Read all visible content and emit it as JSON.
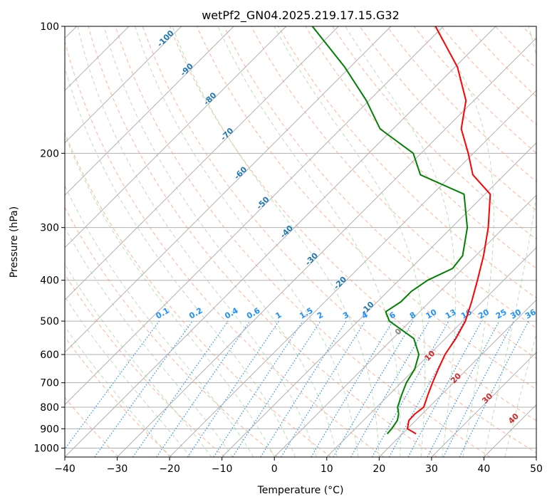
{
  "chart_data": {
    "type": "line",
    "title": "wetPf2_GN04.2025.219.17.15.G32",
    "xlabel": "Temperature (°C)",
    "ylabel": "Pressure (hPa)",
    "xlim": [
      -40,
      50
    ],
    "ylim": [
      1050,
      100
    ],
    "y_scale": "log",
    "x_ticks": [
      -40,
      -30,
      -20,
      -10,
      0,
      10,
      20,
      30,
      40,
      50
    ],
    "y_ticks": [
      100,
      200,
      300,
      400,
      500,
      600,
      700,
      800,
      900,
      1000
    ],
    "grid": true,
    "skew": 45,
    "series": [
      {
        "color": "#ff0000",
        "points": [
          [
            22.6,
            925
          ],
          [
            20.0,
            900
          ],
          [
            18.7,
            860
          ],
          [
            18.6,
            830
          ],
          [
            19.0,
            800
          ],
          [
            17.5,
            750
          ],
          [
            16.0,
            700
          ],
          [
            14.5,
            650
          ],
          [
            13.0,
            600
          ],
          [
            12.0,
            550
          ],
          [
            10.5,
            500
          ],
          [
            8.0,
            450
          ],
          [
            5.0,
            400
          ],
          [
            1.5,
            350
          ],
          [
            -3.0,
            300
          ],
          [
            -9.0,
            250
          ],
          [
            -16.0,
            225
          ],
          [
            -21.0,
            200
          ],
          [
            -27.0,
            175
          ],
          [
            -31.5,
            150
          ],
          [
            -39.5,
            125
          ],
          [
            -51.5,
            100
          ]
        ]
      },
      {
        "color": "#008000",
        "points": [
          [
            17.1,
            925
          ],
          [
            17.0,
            900
          ],
          [
            16.5,
            860
          ],
          [
            15.5,
            830
          ],
          [
            14.0,
            800
          ],
          [
            12.5,
            750
          ],
          [
            11.0,
            700
          ],
          [
            10.0,
            650
          ],
          [
            8.0,
            600
          ],
          [
            4.0,
            550
          ],
          [
            -4.0,
            500
          ],
          [
            -6.5,
            475
          ],
          [
            -5.5,
            450
          ],
          [
            -5.5,
            425
          ],
          [
            -4.5,
            400
          ],
          [
            -2.0,
            375
          ],
          [
            -2.5,
            350
          ],
          [
            -7.0,
            300
          ],
          [
            -14.0,
            250
          ],
          [
            -26.0,
            225
          ],
          [
            -31.5,
            200
          ],
          [
            -42.5,
            175
          ],
          [
            -50.5,
            150
          ],
          [
            -61.0,
            125
          ],
          [
            -75.0,
            100
          ]
        ]
      }
    ],
    "dry_adiabat_labels": [
      "-100",
      "-90",
      "-80",
      "-70",
      "-60",
      "-50",
      "-40",
      "-30",
      "-20",
      "-10"
    ],
    "moist_adiabat_labels": [
      "0",
      "10",
      "20",
      "30",
      "40"
    ],
    "mixing_ratio_labels": [
      "0.1",
      "0.2",
      "0.4",
      "0.6",
      "1",
      "1.5",
      "2",
      "3",
      "4",
      "6",
      "8",
      "10",
      "13",
      "16",
      "20",
      "25",
      "30",
      "36"
    ],
    "colors": {
      "temperature": "#ff0000",
      "dewpoint": "#008000",
      "isotherm": "#999999",
      "dry_adiabat": "#ff9977",
      "moist_adiabat": "#88cc88",
      "mixing_ratio": "#1e90ff",
      "labels_dry": "#1f77b4",
      "labels_moist": "#d62728"
    }
  }
}
